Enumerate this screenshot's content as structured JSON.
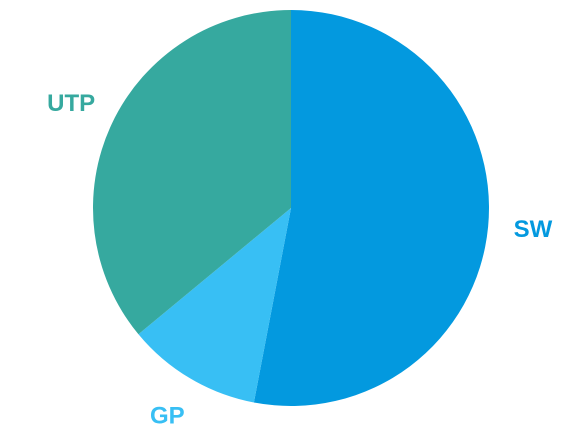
{
  "chart_data": {
    "type": "pie",
    "categories": [
      "SW",
      "GP",
      "UTP"
    ],
    "values": [
      53,
      11,
      36
    ],
    "colors": [
      "#0399df",
      "#38bff4",
      "#36a99f"
    ]
  }
}
